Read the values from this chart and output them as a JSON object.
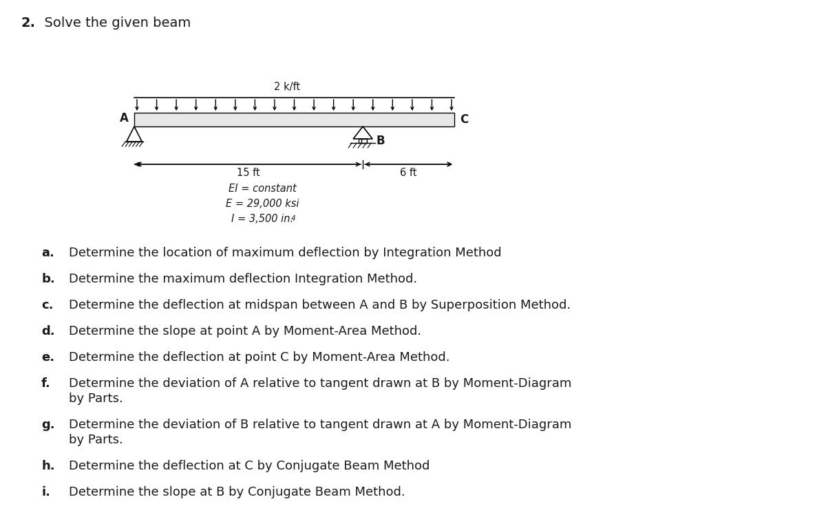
{
  "title_num": "2.",
  "title_text": "  Solve the given beam",
  "title_fontsize": 14,
  "background_color": "#ffffff",
  "text_color": "#1a1a1a",
  "beam_load": "2 k/ft",
  "beam_span_AB": "15 ft",
  "beam_span_BC": "6 ft",
  "EI_line": "EI = constant",
  "E_line": "E = 29,000 ksi",
  "I_line": "I = 3,500 in.",
  "list_items": [
    [
      "a.",
      "Determine the location of maximum deflection by Integration Method"
    ],
    [
      "b.",
      "Determine the maximum deflection Integration Method."
    ],
    [
      "c.",
      "Determine the deflection at midspan between A and B by Superposition Method."
    ],
    [
      "d.",
      "Determine the slope at point A by Moment-Area Method."
    ],
    [
      "e.",
      "Determine the deflection at point C by Moment-Area Method."
    ],
    [
      "f.",
      "Determine the deviation of A relative to tangent drawn at B by Moment-Diagram",
      "by Parts."
    ],
    [
      "g.",
      "Determine the deviation of B relative to tangent drawn at A by Moment-Diagram",
      "by Parts."
    ],
    [
      "h.",
      "Determine the deflection at C by Conjugate Beam Method"
    ],
    [
      "i.",
      "Determine the slope at B by Conjugate Beam Method."
    ]
  ]
}
